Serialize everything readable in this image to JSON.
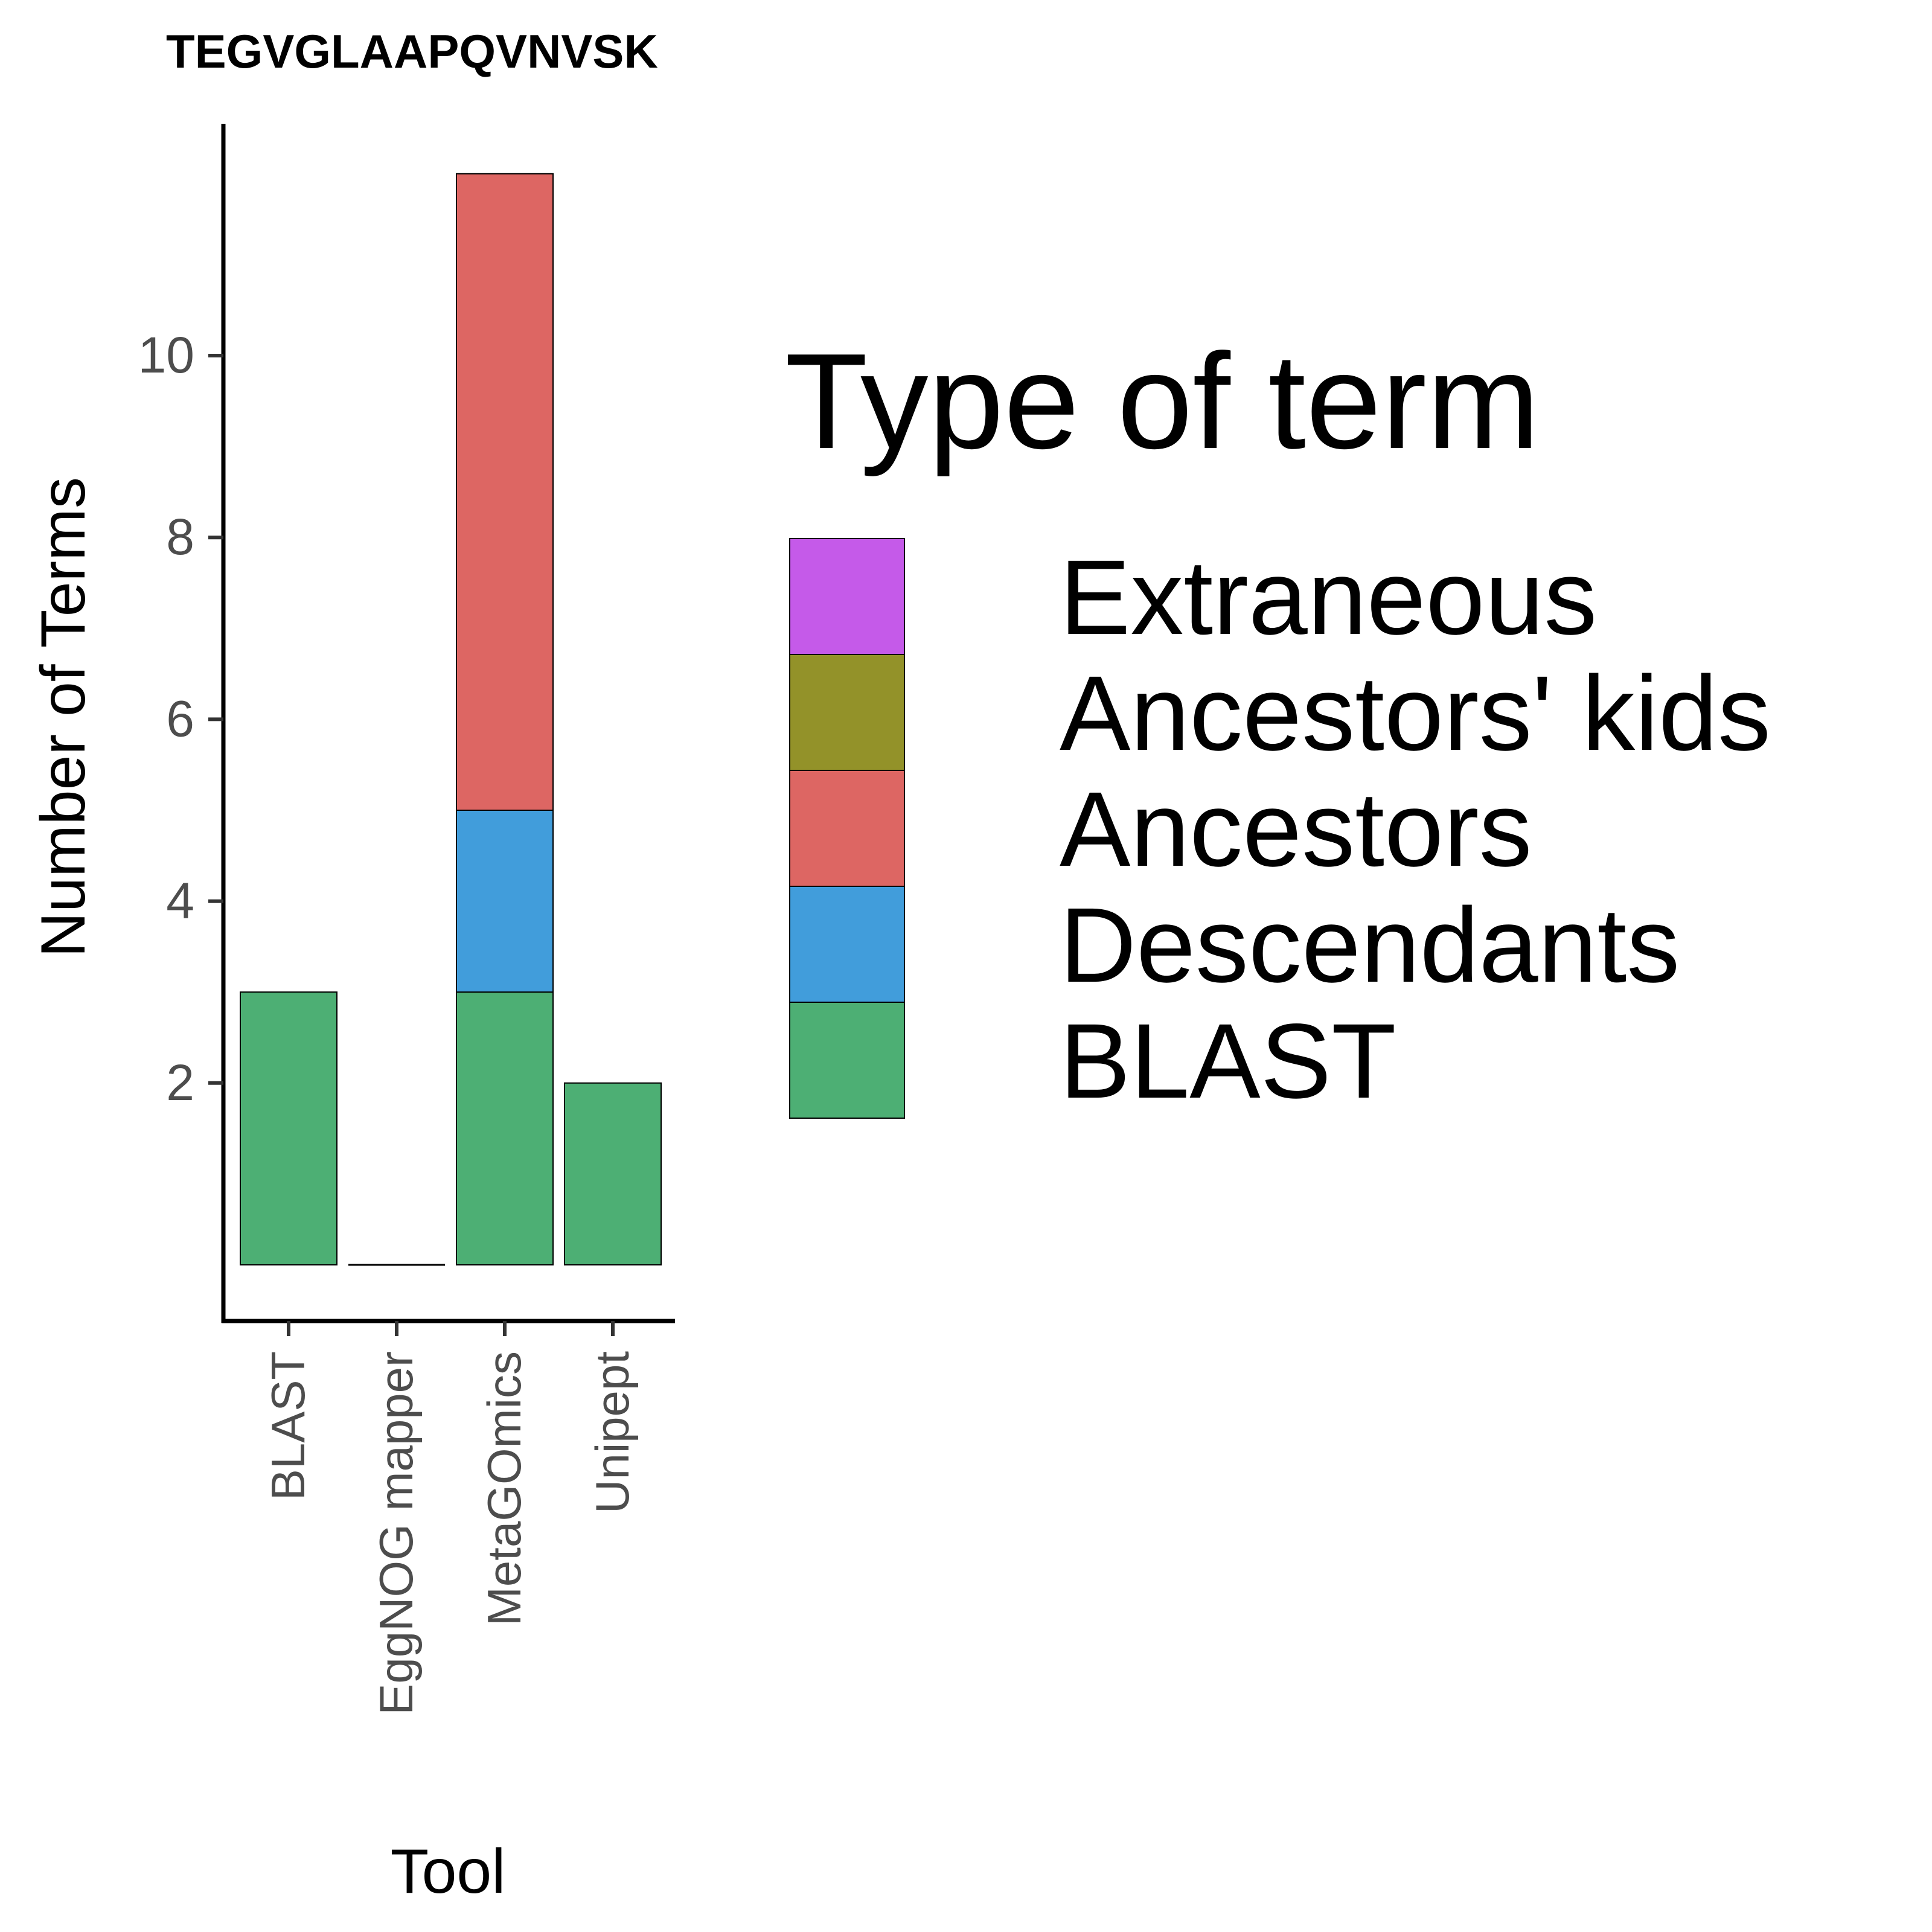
{
  "chart_data": {
    "type": "bar",
    "stacked": true,
    "title": "TEGVGLAAPQVNVSK",
    "xlabel": "Tool",
    "ylabel": "Number of Terms",
    "categories": [
      "BLAST",
      "EggNOG mapper",
      "MetaGOmics",
      "Unipept"
    ],
    "ylim": [
      0,
      12
    ],
    "yticks": [
      2,
      4,
      6,
      8,
      10
    ],
    "series": [
      {
        "name": "BLAST",
        "color": "#4daf74",
        "values": [
          3,
          0,
          3,
          2
        ]
      },
      {
        "name": "Descendants",
        "color": "#419ddb",
        "values": [
          0,
          0,
          2,
          0
        ]
      },
      {
        "name": "Ancestors",
        "color": "#dd6663",
        "values": [
          0,
          0,
          7,
          0
        ]
      },
      {
        "name": "Ancestors' kids",
        "color": "#939229",
        "values": [
          0,
          0,
          0,
          0
        ]
      },
      {
        "name": "Extraneous",
        "color": "#c55ae9",
        "values": [
          0,
          0,
          0,
          0
        ]
      }
    ],
    "legend": {
      "title": "Type of term",
      "placement": "right",
      "order": [
        "Extraneous",
        "Ancestors' kids",
        "Ancestors",
        "Descendants",
        "BLAST"
      ]
    },
    "grid": false
  }
}
